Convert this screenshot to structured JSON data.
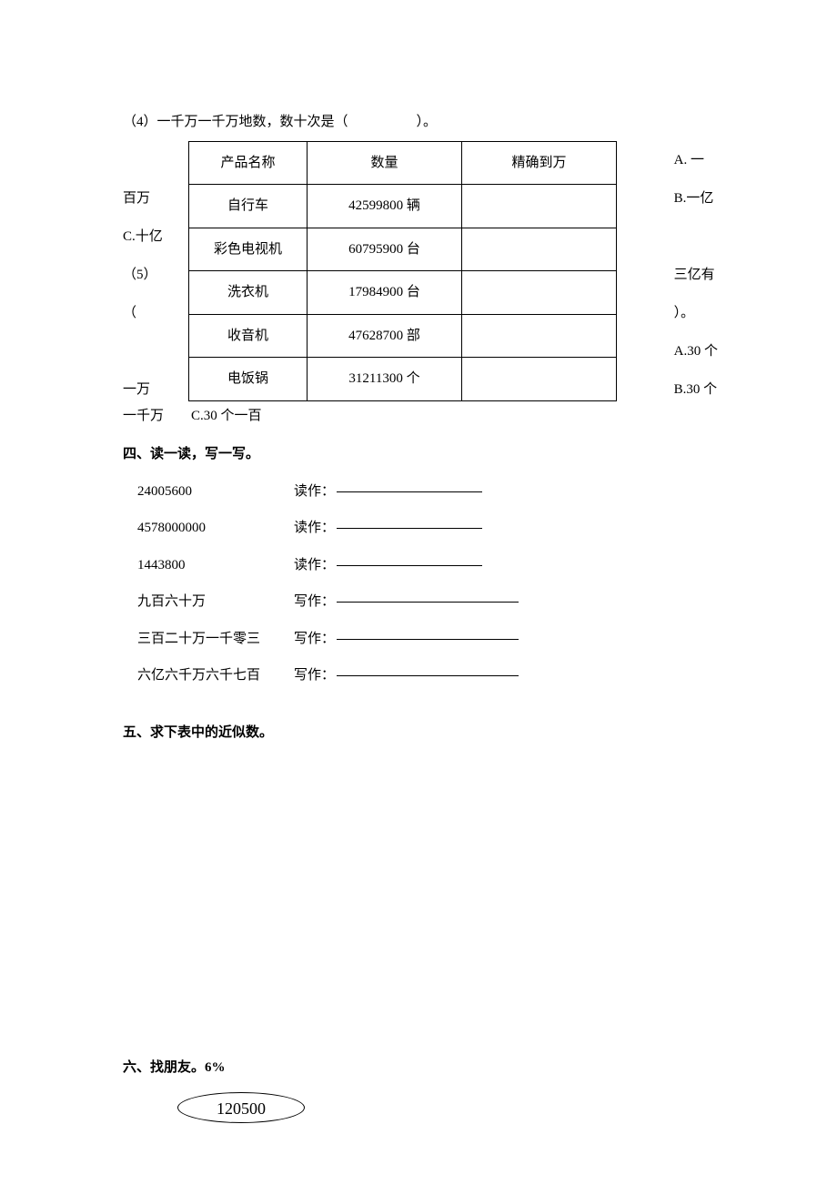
{
  "q4": {
    "text": "（4）一千万一千万地数，数十次是（　　　　　）。"
  },
  "table": {
    "headers": [
      "产品名称",
      "数量",
      "精确到万"
    ],
    "rows": [
      {
        "name": "自行车",
        "qty": "42599800 辆",
        "approx": ""
      },
      {
        "name": "彩色电视机",
        "qty": "60795900 台",
        "approx": ""
      },
      {
        "name": "洗衣机",
        "qty": "17984900 台",
        "approx": ""
      },
      {
        "name": "收音机",
        "qty": "47628700 部",
        "approx": ""
      },
      {
        "name": "电饭锅",
        "qty": "31211300 个",
        "approx": ""
      }
    ]
  },
  "leftCol": [
    "",
    "百万",
    "C.十亿",
    "（5）",
    "（",
    "",
    "一万"
  ],
  "rightCol": [
    "A. 一",
    "B.一亿",
    "",
    "三亿有",
    "）。",
    "A.30 个",
    "B.30 个"
  ],
  "afterTable": "一千万　　C.30 个一百",
  "sec4Title": "四、读一读，写一写。",
  "rwRows": [
    {
      "num": "24005600",
      "label": "读作：",
      "long": false
    },
    {
      "num": "4578000000",
      "label": "读作：",
      "long": false
    },
    {
      "num": "1443800",
      "label": "读作：",
      "long": false
    },
    {
      "num": "九百六十万",
      "label": "写作：",
      "long": true
    },
    {
      "num": "三百二十万一千零三",
      "label": "写作：",
      "long": true
    },
    {
      "num": "六亿六千万六千七百",
      "label": "写作：",
      "long": true
    }
  ],
  "sec5Title": "五、求下表中的近似数。",
  "sec6Title": "六、找朋友。6%",
  "ovalValue": "120500"
}
